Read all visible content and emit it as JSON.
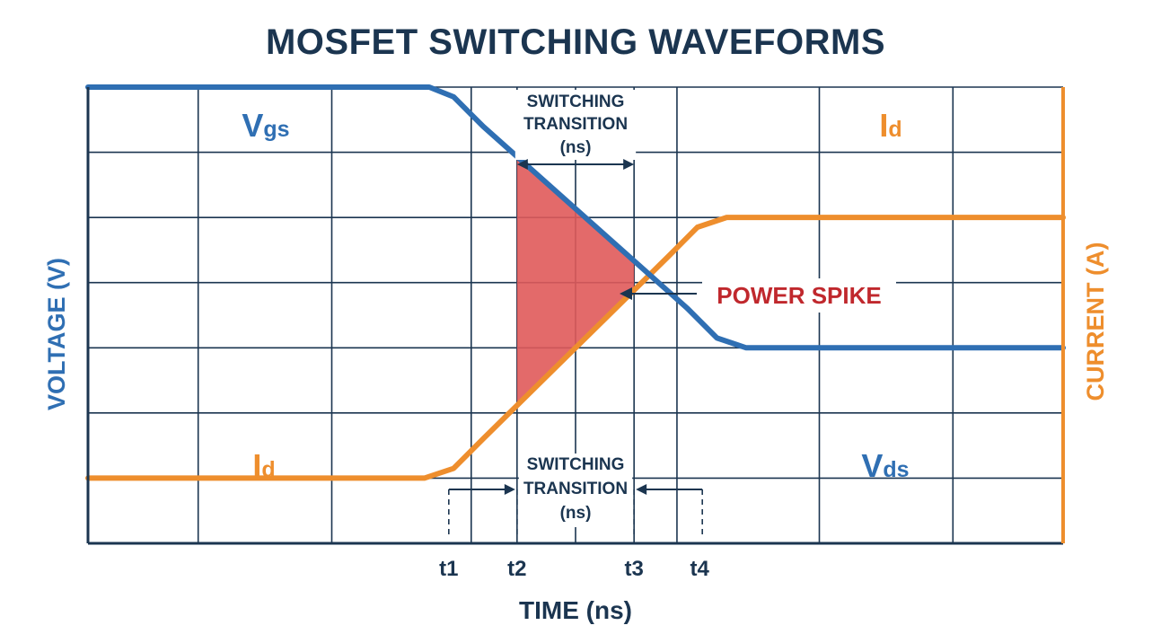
{
  "chart_data": {
    "type": "line",
    "title": "MOSFET SWITCHING WAVEFORMS",
    "xlabel": "TIME (ns)",
    "ylabel_left": "VOLTAGE (V)",
    "ylabel_right": "CURRENT (A)",
    "xlim": [
      0,
      10
    ],
    "ylim": [
      0,
      7
    ],
    "grid": true,
    "x_ticks": [
      {
        "label": "t1",
        "x": 3.7
      },
      {
        "label": "t2",
        "x": 4.4
      },
      {
        "label": "t3",
        "x": 5.6
      },
      {
        "label": "t4",
        "x": 6.3
      }
    ],
    "series": [
      {
        "name": "Vgs",
        "label_main": "V",
        "label_sub": "gs",
        "color": "#2f6fb3",
        "points": [
          [
            0,
            7
          ],
          [
            3.5,
            7
          ],
          [
            3.75,
            6.85
          ],
          [
            4.05,
            6.4
          ],
          [
            6.15,
            3.6
          ],
          [
            6.45,
            3.15
          ],
          [
            6.75,
            3.0
          ],
          [
            10,
            3.0
          ]
        ]
      },
      {
        "name": "Vds",
        "label_main": "V",
        "label_sub": "ds",
        "color": "#2f6fb3"
      },
      {
        "name": "Id (rising)",
        "label_main": "I",
        "label_sub": "d",
        "color": "#ee8e2d",
        "points": [
          [
            0,
            1
          ],
          [
            3.45,
            1
          ],
          [
            3.75,
            1.15
          ],
          [
            4.05,
            1.6
          ],
          [
            5.95,
            4.4
          ],
          [
            6.25,
            4.85
          ],
          [
            6.55,
            5.0
          ],
          [
            10,
            5.0
          ]
        ]
      },
      {
        "name": "Id (final)",
        "label_main": "I",
        "label_sub": "d",
        "color": "#ee8e2d"
      }
    ],
    "annotations": {
      "transition_top": [
        "SWITCHING",
        "TRANSITION",
        "(ns)"
      ],
      "transition_bottom": [
        "SWITCHING",
        "TRANSITION",
        "(ns)"
      ],
      "power_spike": "POWER SPIKE",
      "spike_region": {
        "x_start": 4.4,
        "x_end": 5.6,
        "color": "#e05a5a"
      }
    },
    "colors": {
      "voltage": "#2f6fb3",
      "current": "#ee8e2d",
      "axis": "#1b3550",
      "grid": "#1b3550",
      "spike": "#c0282d"
    }
  }
}
